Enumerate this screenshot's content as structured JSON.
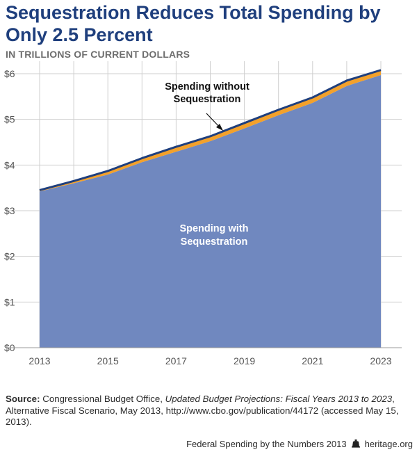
{
  "header": {
    "title": "Sequestration Reduces Total Spending by Only 2.5 Percent",
    "subtitle": "IN TRILLIONS OF CURRENT DOLLARS"
  },
  "colors": {
    "title": "#1f3f7d",
    "area_with": "#7088bf",
    "band_without": "#f3a12b",
    "line_without": "#1f3f7d",
    "grid": "#cfcfcf"
  },
  "chart_data": {
    "type": "area",
    "x": [
      2013,
      2014,
      2015,
      2016,
      2017,
      2018,
      2019,
      2020,
      2021,
      2022,
      2023
    ],
    "x_tick_labels": [
      "2013",
      "2015",
      "2017",
      "2019",
      "2021",
      "2023"
    ],
    "y_tick_labels": [
      "$0",
      "$1",
      "$2",
      "$3",
      "$4",
      "$5",
      "$6"
    ],
    "ylim": [
      0,
      6
    ],
    "grid": true,
    "series": [
      {
        "name": "Spending without Sequestration",
        "values": [
          3.45,
          3.65,
          3.87,
          4.15,
          4.4,
          4.63,
          4.92,
          5.21,
          5.48,
          5.85,
          6.08
        ]
      },
      {
        "name": "Spending with Sequestration",
        "values": [
          3.42,
          3.6,
          3.79,
          4.06,
          4.29,
          4.52,
          4.8,
          5.09,
          5.36,
          5.73,
          5.97
        ]
      }
    ],
    "annotations": {
      "without_line1": "Spending without",
      "without_line2": "Sequestration",
      "with_line1": "Spending with",
      "with_line2": "Sequestration"
    }
  },
  "source": {
    "label": "Source:",
    "text_pre": " Congressional Budget Office, ",
    "italic": "Updated Budget Projections: Fiscal Years 2013 to 2023",
    "text_post": ", Alternative Fiscal Scenario, May 2013, http://www.cbo.gov/publication/44172 (accessed May 15, 2013)."
  },
  "footer": {
    "publication": "Federal Spending by the Numbers 2013",
    "logo_icon": "liberty-bell-icon",
    "site": "heritage.org"
  }
}
